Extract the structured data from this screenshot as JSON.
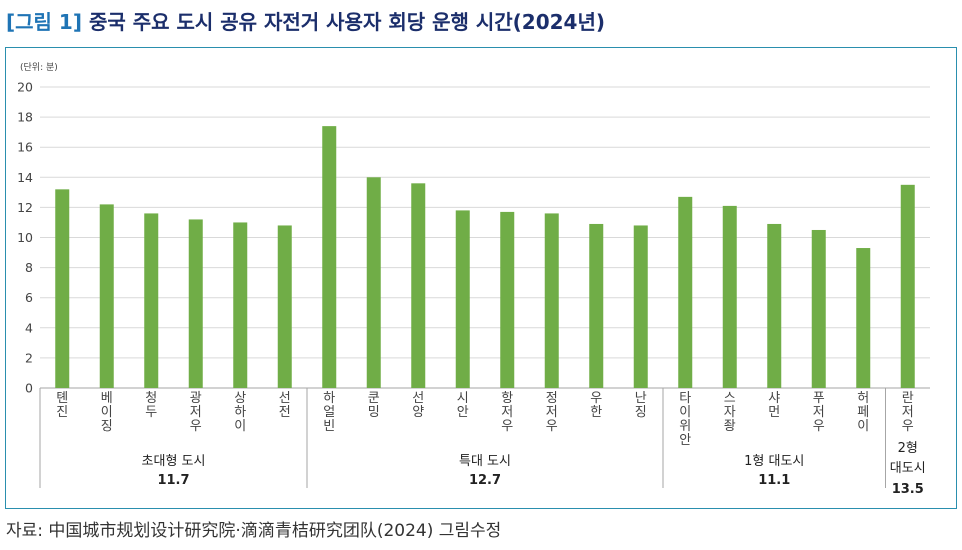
{
  "figure": {
    "label": "[그림 1]",
    "title": "중국 주요 도시 공유 자전거 사용자 회당 운행 시간(2024년)"
  },
  "source": "자료: 中国城市规划设计研究院·滴滴青桔研究团队(2024) 그림수정",
  "colors": {
    "bar": "#70ad47",
    "frame": "#2a8fae",
    "grid": "#d9d9d9",
    "divider": "#a6a6a6"
  },
  "chart_data": {
    "type": "bar",
    "unit_label": "(단위: 분)",
    "ylim": [
      0,
      20
    ],
    "yticks": [
      0,
      2,
      4,
      6,
      8,
      10,
      12,
      14,
      16,
      18,
      20
    ],
    "grid": true,
    "categories": [
      "톈진",
      "베이징",
      "청두",
      "광저우",
      "상하이",
      "선전",
      "하얼빈",
      "쿤밍",
      "선양",
      "시안",
      "항저우",
      "정저우",
      "우한",
      "난징",
      "타이위안",
      "스자좡",
      "샤먼",
      "푸저우",
      "허페이",
      "란저우"
    ],
    "values": [
      13.2,
      12.2,
      11.6,
      11.2,
      11.0,
      10.8,
      17.4,
      14.0,
      13.6,
      11.8,
      11.7,
      11.6,
      10.9,
      10.8,
      12.7,
      12.1,
      10.9,
      10.5,
      9.3,
      13.5
    ],
    "groups": [
      {
        "name": "초대형 도시",
        "avg": "11.7",
        "count": 6
      },
      {
        "name": "특대 도시",
        "avg": "12.7",
        "count": 8
      },
      {
        "name": "1형 대도시",
        "avg": "11.1",
        "count": 5
      },
      {
        "name": "2형 대도시",
        "avg": "13.5",
        "count": 1
      }
    ]
  }
}
